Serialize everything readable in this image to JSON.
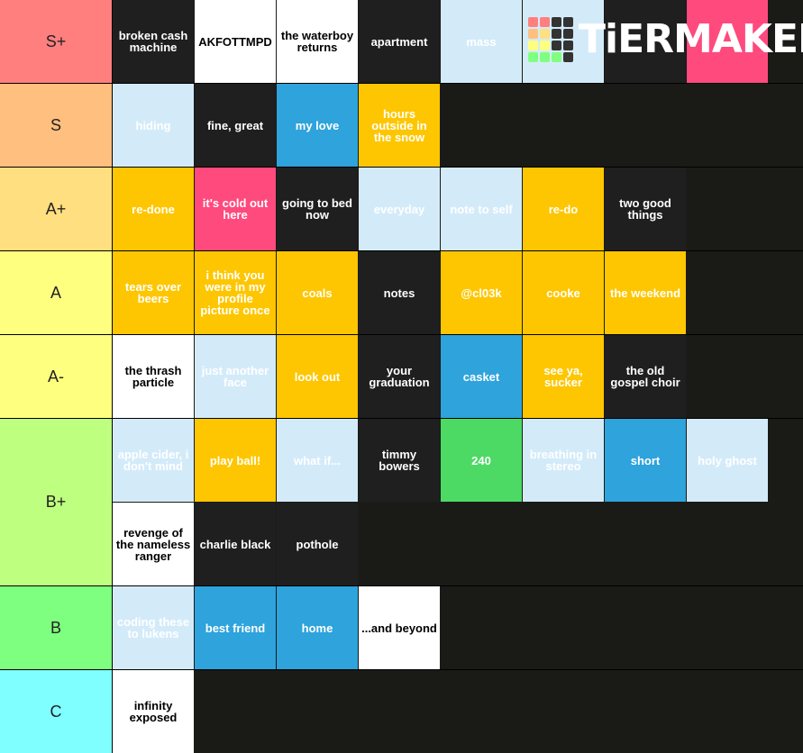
{
  "logo": "TiERMAKER",
  "tiers": [
    {
      "label": "S+",
      "color": "#ff7f7f",
      "items": [
        {
          "label": "broken cash machine",
          "color": "#1f1f20"
        },
        {
          "label": "AKFOTTMPD",
          "color": "#ffffff"
        },
        {
          "label": "the waterboy returns",
          "color": "#ffffff"
        },
        {
          "label": "apartment",
          "color": "#1f1f20"
        },
        {
          "label": "mass",
          "color": "#d3ebf9"
        },
        {
          "color": "#d3ebf9"
        },
        {
          "color": "#1f1f20"
        },
        {
          "color": "#ff4a7d"
        }
      ]
    },
    {
      "label": "S",
      "color": "#ffbf7f",
      "items": [
        {
          "label": "hiding",
          "color": "#d3ebf9"
        },
        {
          "label": "fine, great",
          "color": "#1f1f20"
        },
        {
          "label": "my love",
          "color": "#2ea3dc"
        },
        {
          "label": "hours outside in the snow",
          "color": "#fec600"
        }
      ]
    },
    {
      "label": "A+",
      "color": "#ffdf7f",
      "items": [
        {
          "label": "re-done",
          "color": "#fec600"
        },
        {
          "label": "it's cold out here",
          "color": "#ff4a7d"
        },
        {
          "label": "going to bed now",
          "color": "#1f1f20"
        },
        {
          "label": "everyday",
          "color": "#d3ebf9"
        },
        {
          "label": "note to self",
          "color": "#d3ebf9"
        },
        {
          "label": "re-do",
          "color": "#fec600"
        },
        {
          "label": "two good things",
          "color": "#1f1f20"
        }
      ]
    },
    {
      "label": "A",
      "color": "#ffff7f",
      "items": [
        {
          "label": "tears over beers",
          "color": "#fec600"
        },
        {
          "label": "i think you were in my profile picture once",
          "color": "#fec600"
        },
        {
          "label": "coals",
          "color": "#fec600"
        },
        {
          "label": "notes",
          "color": "#1f1f20"
        },
        {
          "label": "@cl03k",
          "color": "#fec600"
        },
        {
          "label": "cooke",
          "color": "#fec600"
        },
        {
          "label": "the weekend",
          "color": "#fec600"
        }
      ]
    },
    {
      "label": "A-",
      "color": "#ffff7f",
      "items": [
        {
          "label": "the thrash particle",
          "color": "#ffffff"
        },
        {
          "label": "just another face",
          "color": "#d3ebf9"
        },
        {
          "label": "look out",
          "color": "#fec600"
        },
        {
          "label": "your graduation",
          "color": "#1f1f20"
        },
        {
          "label": "casket",
          "color": "#2ea3dc"
        },
        {
          "label": "see ya, sucker",
          "color": "#fec600"
        },
        {
          "label": "the old gospel choir",
          "color": "#1f1f20"
        }
      ]
    },
    {
      "label": "B+",
      "color": "#bfff7f",
      "items": [
        {
          "label": "apple cider, i don't mind",
          "color": "#d3ebf9"
        },
        {
          "label": "play ball!",
          "color": "#fec600"
        },
        {
          "label": "what if...",
          "color": "#d3ebf9"
        },
        {
          "label": "timmy bowers",
          "color": "#1f1f20"
        },
        {
          "label": "240",
          "color": "#4cd964"
        },
        {
          "label": "breathing in stereo",
          "color": "#d3ebf9"
        },
        {
          "label": "short",
          "color": "#2ea3dc"
        },
        {
          "label": "holy ghost",
          "color": "#d3ebf9"
        },
        {
          "label": "revenge of the nameless ranger",
          "color": "#ffffff"
        },
        {
          "label": "charlie black",
          "color": "#1f1f20"
        },
        {
          "label": "pothole",
          "color": "#1f1f20"
        }
      ]
    },
    {
      "label": "B",
      "color": "#7fff7f",
      "items": [
        {
          "label": "coding these to lukens",
          "color": "#d3ebf9"
        },
        {
          "label": "best friend",
          "color": "#2ea3dc"
        },
        {
          "label": "home",
          "color": "#2ea3dc"
        },
        {
          "label": "...and beyond",
          "color": "#ffffff"
        }
      ]
    },
    {
      "label": "C",
      "color": "#7fffff",
      "items": [
        {
          "label": "infinity exposed",
          "color": "#ffffff"
        }
      ]
    }
  ]
}
